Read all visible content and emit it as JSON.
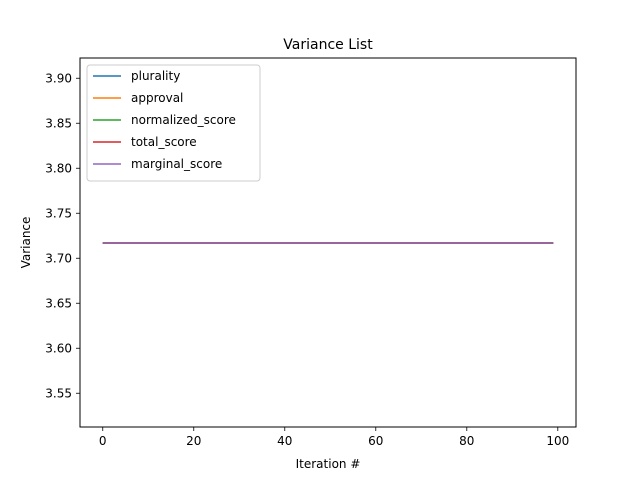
{
  "chart_data": {
    "type": "line",
    "title": "Variance List",
    "xlabel": "Iteration #",
    "ylabel": "Variance",
    "xlim": [
      -5,
      104
    ],
    "ylim": [
      3.5125,
      3.9225
    ],
    "xticks": [
      0,
      20,
      40,
      60,
      80,
      100
    ],
    "xtick_labels": [
      "0",
      "20",
      "40",
      "60",
      "80",
      "100"
    ],
    "yticks": [
      3.55,
      3.6,
      3.65,
      3.7,
      3.75,
      3.8,
      3.85,
      3.9
    ],
    "ytick_labels": [
      "3.55",
      "3.60",
      "3.65",
      "3.70",
      "3.75",
      "3.80",
      "3.85",
      "3.90"
    ],
    "grid": false,
    "legend_position": "top-left",
    "x": [
      0,
      99
    ],
    "series": [
      {
        "name": "plurality",
        "color": "#1f77b4",
        "values": [
          3.717,
          3.717
        ]
      },
      {
        "name": "approval",
        "color": "#ff7f0e",
        "values": [
          3.717,
          3.717
        ]
      },
      {
        "name": "normalized_score",
        "color": "#2ca02c",
        "values": [
          3.717,
          3.717
        ]
      },
      {
        "name": "total_score",
        "color": "#d62728",
        "values": [
          3.717,
          3.717
        ]
      },
      {
        "name": "marginal_score",
        "color": "#9467bd",
        "values": [
          3.717,
          3.717
        ]
      }
    ]
  }
}
